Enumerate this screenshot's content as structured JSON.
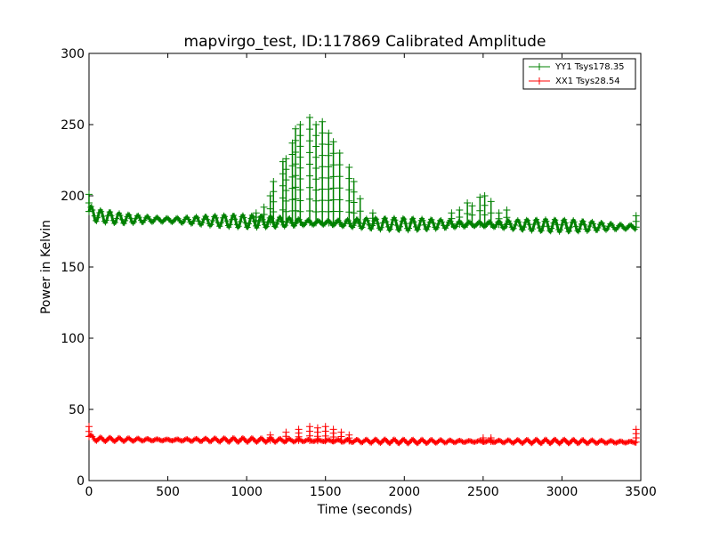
{
  "chart_data": {
    "type": "line",
    "title": "mapvirgo_test, ID:117869 Calibrated Amplitude",
    "xlabel": "Time (seconds)",
    "ylabel": "Power in Kelvin",
    "xlim": [
      0,
      3500
    ],
    "ylim": [
      0,
      300
    ],
    "xticks": [
      "0",
      "500",
      "1000",
      "1500",
      "2000",
      "2500",
      "3000",
      "3500"
    ],
    "yticks": [
      "0",
      "50",
      "100",
      "150",
      "200",
      "250",
      "300"
    ],
    "grid": false,
    "legend_position": "top-right",
    "marker": "+",
    "series": [
      {
        "name": "YY1 Tsys178.35",
        "color": "#008000",
        "baseline_points": [
          [
            0,
            189
          ],
          [
            50,
            186
          ],
          [
            200,
            184
          ],
          [
            500,
            183
          ],
          [
            1000,
            182
          ],
          [
            1500,
            181
          ],
          [
            2000,
            180
          ],
          [
            2500,
            180
          ],
          [
            3000,
            179
          ],
          [
            3470,
            178
          ]
        ],
        "baseline_ripple": 3,
        "spikes": [
          [
            0,
            201
          ],
          [
            1060,
            188
          ],
          [
            1110,
            192
          ],
          [
            1150,
            200
          ],
          [
            1170,
            210
          ],
          [
            1230,
            224
          ],
          [
            1250,
            226
          ],
          [
            1290,
            237
          ],
          [
            1310,
            247
          ],
          [
            1340,
            250
          ],
          [
            1400,
            255
          ],
          [
            1440,
            250
          ],
          [
            1480,
            252
          ],
          [
            1520,
            244
          ],
          [
            1550,
            238
          ],
          [
            1590,
            230
          ],
          [
            1650,
            220
          ],
          [
            1680,
            210
          ],
          [
            1720,
            198
          ],
          [
            1800,
            188
          ],
          [
            2300,
            188
          ],
          [
            2350,
            190
          ],
          [
            2400,
            195
          ],
          [
            2430,
            193
          ],
          [
            2480,
            199
          ],
          [
            2510,
            200
          ],
          [
            2550,
            196
          ],
          [
            2600,
            188
          ],
          [
            2650,
            190
          ],
          [
            3470,
            186
          ]
        ]
      },
      {
        "name": "XX1 Tsys28.54",
        "color": "#ff0000",
        "baseline_points": [
          [
            0,
            31
          ],
          [
            50,
            29
          ],
          [
            500,
            28.5
          ],
          [
            1000,
            28.5
          ],
          [
            1500,
            28
          ],
          [
            2000,
            27.5
          ],
          [
            2500,
            27.5
          ],
          [
            3000,
            27.5
          ],
          [
            3470,
            27
          ]
        ],
        "baseline_ripple": 1,
        "spikes": [
          [
            0,
            38
          ],
          [
            1150,
            32
          ],
          [
            1250,
            34
          ],
          [
            1330,
            36
          ],
          [
            1400,
            38
          ],
          [
            1450,
            37
          ],
          [
            1500,
            38
          ],
          [
            1550,
            36
          ],
          [
            1600,
            34
          ],
          [
            1650,
            32
          ],
          [
            2500,
            30
          ],
          [
            2550,
            30
          ],
          [
            3470,
            36
          ]
        ]
      }
    ]
  }
}
